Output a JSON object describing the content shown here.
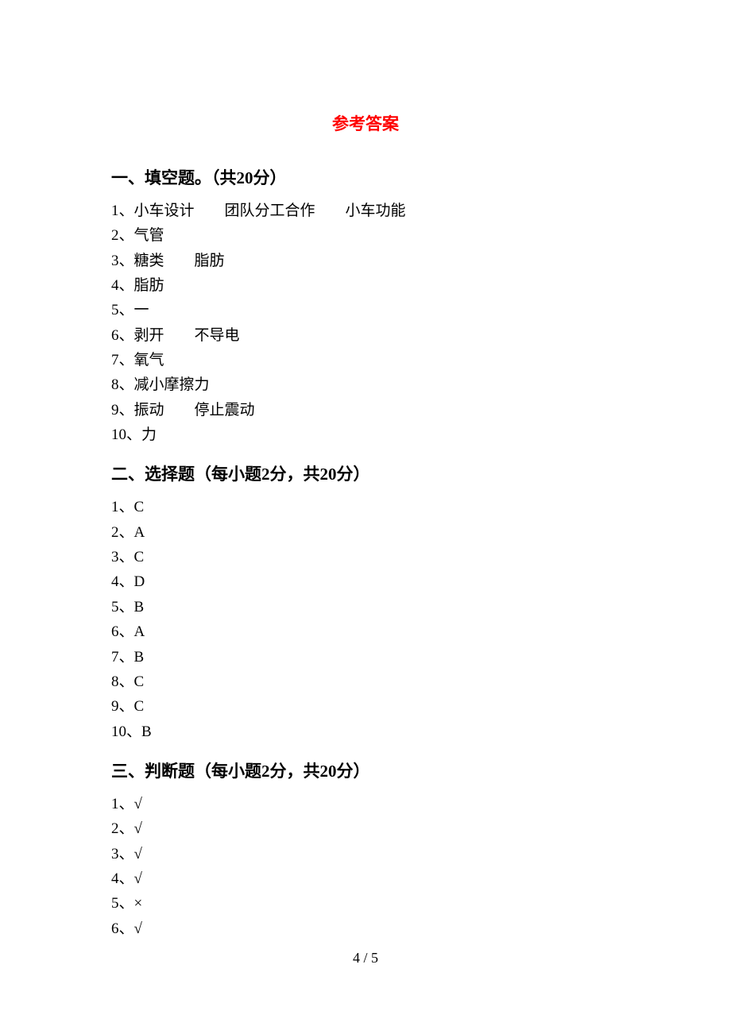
{
  "title": "参考答案",
  "sections": [
    {
      "header": "一、填空题。（共20分）",
      "items": [
        "1、小车设计　　团队分工合作　　小车功能",
        "2、气管",
        "3、糖类　　脂肪",
        "4、脂肪",
        "5、一",
        "6、剥开　　不导电",
        "7、氧气",
        "8、减小摩擦力",
        "9、振动　　停止震动",
        "10、力"
      ]
    },
    {
      "header": "二、选择题（每小题2分，共20分）",
      "items": [
        "1、C",
        "2、A",
        "3、C",
        "4、D",
        "5、B",
        "6、A",
        "7、B",
        "8、C",
        "9、C",
        "10、B"
      ]
    },
    {
      "header": "三、判断题（每小题2分，共20分）",
      "items": [
        "1、√",
        "2、√",
        "3、√",
        "4、√",
        "5、×",
        "6、√"
      ]
    }
  ],
  "pageNumber": "4 / 5",
  "colors": {
    "title": "#ff0000",
    "text": "#000000",
    "background": "#ffffff"
  },
  "typography": {
    "title_fontsize": 21,
    "header_fontsize": 21,
    "body_fontsize": 19,
    "pagenum_fontsize": 18,
    "font_family": "SimSun"
  }
}
